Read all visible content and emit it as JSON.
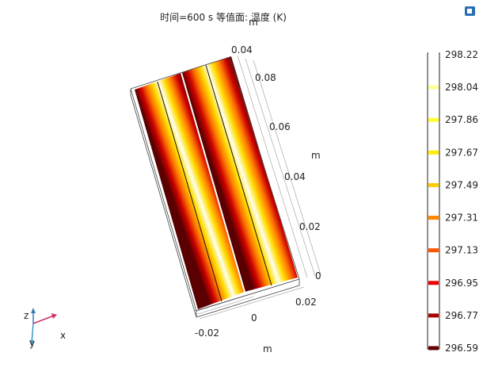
{
  "header": {
    "title": "时间=600 s   等值面: 温度 (K)"
  },
  "axes": {
    "top_unit": "m",
    "top_tick": "0.04",
    "vertical_ticks": [
      "0.08",
      "0.06",
      "0.04",
      "0.02",
      "0"
    ],
    "vertical_unit": "m",
    "horizontal_ticks": [
      "0.02",
      "0",
      "-0.02"
    ],
    "horizontal_unit": "m"
  },
  "triad": {
    "z": "z",
    "y": "y",
    "x": "x"
  },
  "legend": {
    "labels": [
      "298.22",
      "298.04",
      "297.86",
      "297.67",
      "297.49",
      "297.31",
      "297.13",
      "296.95",
      "296.77",
      "296.59"
    ],
    "colors": [
      "#ffffff",
      "#ffff99",
      "#ffff33",
      "#ffee00",
      "#ffcc00",
      "#ff8800",
      "#ff5500",
      "#ee0000",
      "#aa0000",
      "#660000"
    ]
  }
}
